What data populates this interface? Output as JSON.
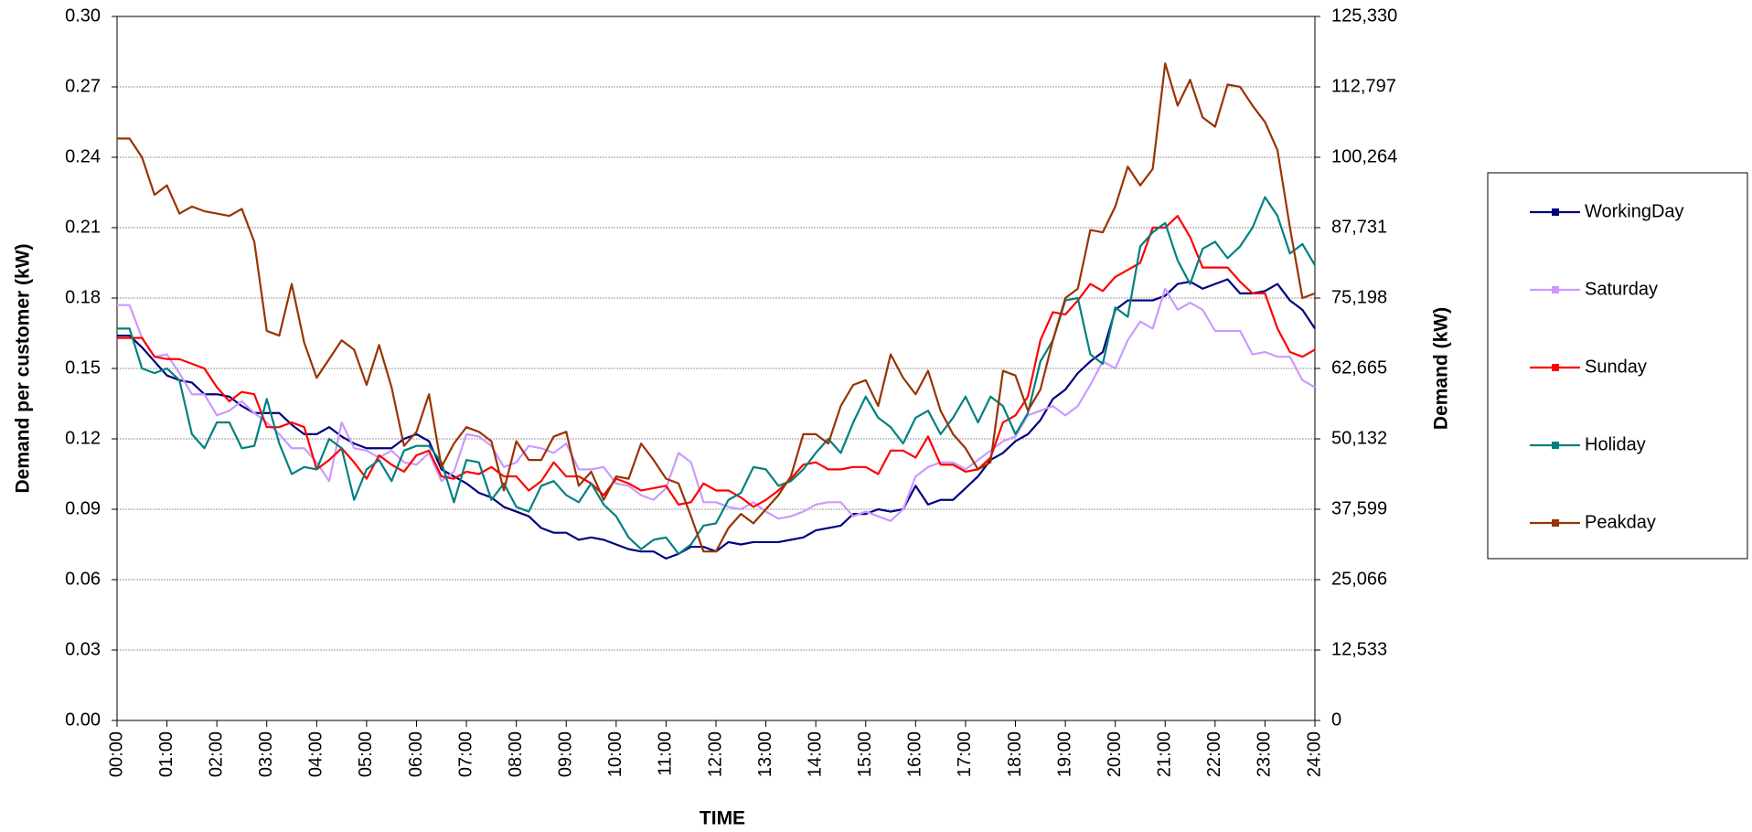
{
  "chart_data": {
    "type": "line",
    "x_label": "TIME",
    "y_label": "Demand per customer (kW)",
    "y2_label": "Demand (kW)",
    "xlim": [
      0,
      24
    ],
    "xticks": [
      {
        "value": 0,
        "label": "00:00"
      },
      {
        "value": 1,
        "label": "01:00"
      },
      {
        "value": 2,
        "label": "02:00"
      },
      {
        "value": 3,
        "label": "03:00"
      },
      {
        "value": 4,
        "label": "04:00"
      },
      {
        "value": 5,
        "label": "05:00"
      },
      {
        "value": 6,
        "label": "06:00"
      },
      {
        "value": 7,
        "label": "07:00"
      },
      {
        "value": 8,
        "label": "08:00"
      },
      {
        "value": 9,
        "label": "09:00"
      },
      {
        "value": 10,
        "label": "10:00"
      },
      {
        "value": 11,
        "label": "11:00"
      },
      {
        "value": 12,
        "label": "12:00"
      },
      {
        "value": 13,
        "label": "13:00"
      },
      {
        "value": 14,
        "label": "14:00"
      },
      {
        "value": 15,
        "label": "15:00"
      },
      {
        "value": 16,
        "label": "16:00"
      },
      {
        "value": 17,
        "label": "17:00"
      },
      {
        "value": 18,
        "label": "18:00"
      },
      {
        "value": 19,
        "label": "19:00"
      },
      {
        "value": 20,
        "label": "20:00"
      },
      {
        "value": 21,
        "label": "21:00"
      },
      {
        "value": 22,
        "label": "22:00"
      },
      {
        "value": 23,
        "label": "23:00"
      },
      {
        "value": 24,
        "label": "24:00"
      }
    ],
    "ylim": [
      0,
      0.3
    ],
    "yticks": [
      {
        "value": 0,
        "label": "0.00"
      },
      0.03,
      0.06,
      0.09,
      0.12,
      0.15,
      0.18,
      0.21,
      0.24,
      0.27,
      {
        "value": 0.3,
        "label": "0.30"
      }
    ],
    "y2lim": [
      0,
      125330
    ],
    "y2ticks": [
      0,
      {
        "value": 12533,
        "label": "12,533"
      },
      {
        "value": 25066,
        "label": "25,066"
      },
      {
        "value": 37599,
        "label": "37,599"
      },
      {
        "value": 50132,
        "label": "50,132"
      },
      {
        "value": 62665,
        "label": "62,665"
      },
      {
        "value": 75198,
        "label": "75,198"
      },
      {
        "value": 87731,
        "label": "87,731"
      },
      {
        "value": 100264,
        "label": "100,264"
      },
      {
        "value": 112797,
        "label": "112,797"
      },
      {
        "value": 125330,
        "label": "125,330"
      }
    ],
    "grid": true,
    "legend": "right",
    "x": [
      0,
      0.25,
      0.5,
      0.75,
      1,
      1.25,
      1.5,
      1.75,
      2,
      2.25,
      2.5,
      2.75,
      3,
      3.25,
      3.5,
      3.75,
      4,
      4.25,
      4.5,
      4.75,
      5,
      5.25,
      5.5,
      5.75,
      6,
      6.25,
      6.5,
      6.75,
      7,
      7.25,
      7.5,
      7.75,
      8,
      8.25,
      8.5,
      8.75,
      9,
      9.25,
      9.5,
      9.75,
      10,
      10.25,
      10.5,
      10.75,
      11,
      11.25,
      11.5,
      11.75,
      12,
      12.25,
      12.5,
      12.75,
      13,
      13.25,
      13.5,
      13.75,
      14,
      14.25,
      14.5,
      14.75,
      15,
      15.25,
      15.5,
      15.75,
      16,
      16.25,
      16.5,
      16.75,
      17,
      17.25,
      17.5,
      17.75,
      18,
      18.25,
      18.5,
      18.75,
      19,
      19.25,
      19.5,
      19.75,
      20,
      20.25,
      20.5,
      20.75,
      21,
      21.25,
      21.5,
      21.75,
      22,
      22.25,
      22.5,
      22.75,
      23,
      23.25,
      23.5,
      23.75,
      24
    ],
    "series": [
      {
        "name": "WorkingDay",
        "color": "#000080",
        "values": [
          0.164,
          0.164,
          0.159,
          0.153,
          0.147,
          0.145,
          0.144,
          0.139,
          0.139,
          0.138,
          0.134,
          0.131,
          0.131,
          0.131,
          0.126,
          0.122,
          0.122,
          0.125,
          0.121,
          0.118,
          0.116,
          0.116,
          0.116,
          0.12,
          0.122,
          0.119,
          0.107,
          0.104,
          0.101,
          0.097,
          0.095,
          0.091,
          0.089,
          0.087,
          0.082,
          0.08,
          0.08,
          0.077,
          0.078,
          0.077,
          0.075,
          0.073,
          0.072,
          0.072,
          0.069,
          0.071,
          0.074,
          0.074,
          0.072,
          0.076,
          0.075,
          0.076,
          0.076,
          0.076,
          0.077,
          0.078,
          0.081,
          0.082,
          0.083,
          0.088,
          0.088,
          0.09,
          0.089,
          0.09,
          0.1,
          0.092,
          0.094,
          0.094,
          0.099,
          0.104,
          0.111,
          0.114,
          0.119,
          0.122,
          0.128,
          0.137,
          0.141,
          0.148,
          0.153,
          0.157,
          0.175,
          0.179,
          0.179,
          0.179,
          0.181,
          0.186,
          0.187,
          0.184,
          0.186,
          0.188,
          0.182,
          0.182,
          0.183,
          0.186,
          0.179,
          0.175,
          0.167
        ]
      },
      {
        "name": "Saturday",
        "color": "#cc99ff",
        "values": [
          0.177,
          0.177,
          0.163,
          0.155,
          0.156,
          0.148,
          0.139,
          0.139,
          0.13,
          0.132,
          0.136,
          0.131,
          0.127,
          0.122,
          0.116,
          0.116,
          0.11,
          0.102,
          0.127,
          0.116,
          0.115,
          0.112,
          0.115,
          0.11,
          0.109,
          0.114,
          0.102,
          0.106,
          0.122,
          0.121,
          0.117,
          0.108,
          0.11,
          0.117,
          0.116,
          0.114,
          0.118,
          0.107,
          0.107,
          0.108,
          0.101,
          0.1,
          0.096,
          0.094,
          0.099,
          0.114,
          0.11,
          0.093,
          0.093,
          0.091,
          0.09,
          0.093,
          0.089,
          0.086,
          0.087,
          0.089,
          0.092,
          0.093,
          0.093,
          0.087,
          0.089,
          0.087,
          0.085,
          0.09,
          0.104,
          0.108,
          0.11,
          0.11,
          0.107,
          0.111,
          0.115,
          0.119,
          0.121,
          0.13,
          0.132,
          0.134,
          0.13,
          0.134,
          0.143,
          0.153,
          0.15,
          0.162,
          0.17,
          0.167,
          0.184,
          0.175,
          0.178,
          0.175,
          0.166,
          0.166,
          0.166,
          0.156,
          0.157,
          0.155,
          0.155,
          0.145,
          0.142
        ]
      },
      {
        "name": "Sunday",
        "color": "#ff0000",
        "values": [
          0.163,
          0.163,
          0.163,
          0.155,
          0.154,
          0.154,
          0.152,
          0.15,
          0.142,
          0.136,
          0.14,
          0.139,
          0.125,
          0.125,
          0.127,
          0.125,
          0.107,
          0.111,
          0.116,
          0.11,
          0.103,
          0.113,
          0.109,
          0.106,
          0.113,
          0.115,
          0.104,
          0.103,
          0.106,
          0.105,
          0.108,
          0.104,
          0.104,
          0.098,
          0.102,
          0.11,
          0.104,
          0.104,
          0.101,
          0.096,
          0.103,
          0.101,
          0.098,
          0.099,
          0.1,
          0.092,
          0.093,
          0.101,
          0.098,
          0.098,
          0.095,
          0.091,
          0.094,
          0.098,
          0.103,
          0.109,
          0.11,
          0.107,
          0.107,
          0.108,
          0.108,
          0.105,
          0.115,
          0.115,
          0.112,
          0.121,
          0.109,
          0.109,
          0.106,
          0.107,
          0.112,
          0.127,
          0.13,
          0.138,
          0.162,
          0.174,
          0.173,
          0.179,
          0.186,
          0.183,
          0.189,
          0.192,
          0.195,
          0.21,
          0.21,
          0.215,
          0.206,
          0.193,
          0.193,
          0.193,
          0.187,
          0.182,
          0.182,
          0.167,
          0.157,
          0.155,
          0.158
        ]
      },
      {
        "name": "Holiday",
        "color": "#008080",
        "values": [
          0.167,
          0.167,
          0.15,
          0.148,
          0.15,
          0.145,
          0.122,
          0.116,
          0.127,
          0.127,
          0.116,
          0.117,
          0.137,
          0.118,
          0.105,
          0.108,
          0.107,
          0.12,
          0.116,
          0.094,
          0.107,
          0.111,
          0.102,
          0.115,
          0.117,
          0.117,
          0.11,
          0.093,
          0.111,
          0.11,
          0.094,
          0.101,
          0.091,
          0.089,
          0.1,
          0.102,
          0.096,
          0.093,
          0.101,
          0.092,
          0.087,
          0.078,
          0.073,
          0.077,
          0.078,
          0.071,
          0.075,
          0.083,
          0.084,
          0.094,
          0.097,
          0.108,
          0.107,
          0.1,
          0.102,
          0.107,
          0.114,
          0.12,
          0.114,
          0.127,
          0.138,
          0.129,
          0.125,
          0.118,
          0.129,
          0.132,
          0.122,
          0.129,
          0.138,
          0.127,
          0.138,
          0.134,
          0.122,
          0.131,
          0.153,
          0.162,
          0.179,
          0.18,
          0.156,
          0.152,
          0.176,
          0.172,
          0.202,
          0.208,
          0.212,
          0.196,
          0.186,
          0.201,
          0.204,
          0.197,
          0.202,
          0.21,
          0.223,
          0.215,
          0.199,
          0.203,
          0.194
        ]
      },
      {
        "name": "Peakday",
        "color": "#993300",
        "values": [
          0.248,
          0.248,
          0.24,
          0.224,
          0.228,
          0.216,
          0.219,
          0.217,
          0.216,
          0.215,
          0.218,
          0.204,
          0.166,
          0.164,
          0.186,
          0.161,
          0.146,
          0.154,
          0.162,
          0.158,
          0.143,
          0.16,
          0.142,
          0.117,
          0.123,
          0.139,
          0.108,
          0.118,
          0.125,
          0.123,
          0.119,
          0.098,
          0.119,
          0.111,
          0.111,
          0.121,
          0.123,
          0.1,
          0.106,
          0.094,
          0.104,
          0.103,
          0.118,
          0.111,
          0.103,
          0.101,
          0.087,
          0.072,
          0.072,
          0.082,
          0.088,
          0.084,
          0.09,
          0.096,
          0.104,
          0.122,
          0.122,
          0.118,
          0.134,
          0.143,
          0.145,
          0.134,
          0.156,
          0.146,
          0.139,
          0.149,
          0.132,
          0.122,
          0.116,
          0.107,
          0.11,
          0.149,
          0.147,
          0.132,
          0.141,
          0.162,
          0.18,
          0.184,
          0.209,
          0.208,
          0.219,
          0.236,
          0.228,
          0.235,
          0.28,
          0.262,
          0.273,
          0.257,
          0.253,
          0.271,
          0.27,
          0.262,
          0.255,
          0.243,
          0.21,
          0.18,
          0.182
        ]
      }
    ]
  }
}
